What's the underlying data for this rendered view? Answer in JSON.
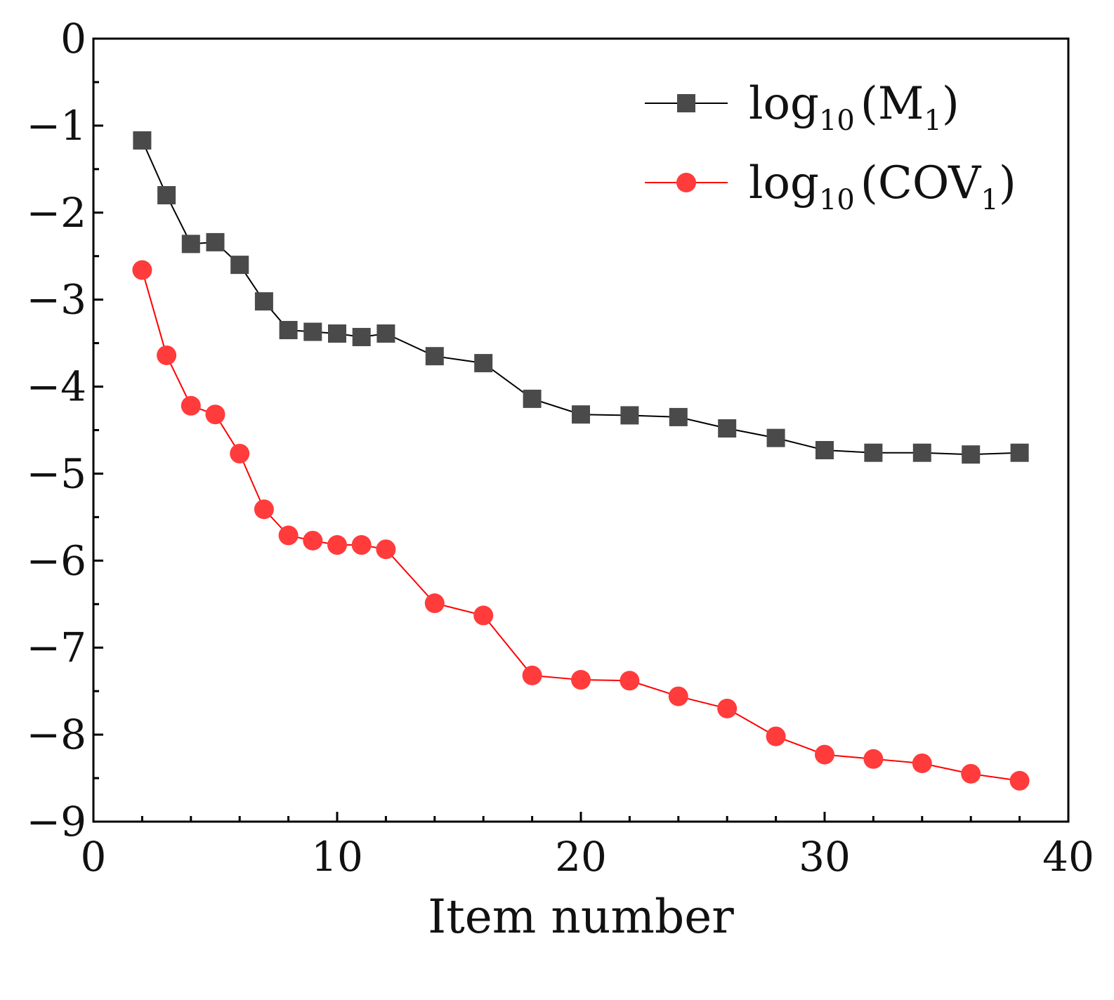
{
  "chart_data": {
    "type": "line",
    "title": "",
    "xlabel": "Item number",
    "ylabel": "",
    "xlim": [
      0,
      40
    ],
    "ylim": [
      -9,
      0
    ],
    "xticks": [
      0,
      10,
      20,
      30,
      40
    ],
    "yticks": [
      0,
      -1,
      -2,
      -3,
      -4,
      -5,
      -6,
      -7,
      -8,
      -9
    ],
    "ytick_labels": [
      "0",
      "−1",
      "−2",
      "−3",
      "−4",
      "−5",
      "−6",
      "−7",
      "−8",
      "−9"
    ],
    "grid": false,
    "legend_position": "top-right",
    "x": [
      2,
      3,
      4,
      5,
      6,
      7,
      8,
      9,
      10,
      11,
      12,
      14,
      16,
      18,
      20,
      22,
      24,
      26,
      28,
      30,
      32,
      34,
      36,
      38
    ],
    "series": [
      {
        "name": "log10(M1)",
        "label_main": "log",
        "label_sub": "10",
        "label_open": "(M",
        "label_index": "1",
        "label_close": ")",
        "color": "#4a4a4a",
        "line_color": "#000000",
        "marker": "square",
        "values": [
          -1.17,
          -1.8,
          -2.36,
          -2.34,
          -2.6,
          -3.02,
          -3.35,
          -3.37,
          -3.39,
          -3.43,
          -3.39,
          -3.65,
          -3.73,
          -4.14,
          -4.32,
          -4.33,
          -4.35,
          -4.48,
          -4.59,
          -4.73,
          -4.76,
          -4.76,
          -4.78,
          -4.76
        ]
      },
      {
        "name": "log10(COV1)",
        "label_main": "log",
        "label_sub": "10",
        "label_open": "(COV",
        "label_index": "1",
        "label_close": ")",
        "color": "#ff3b3b",
        "line_color": "#ff0000",
        "marker": "circle",
        "values": [
          -2.66,
          -3.64,
          -4.22,
          -4.32,
          -4.77,
          -5.41,
          -5.71,
          -5.77,
          -5.82,
          -5.82,
          -5.87,
          -6.49,
          -6.63,
          -7.32,
          -7.37,
          -7.38,
          -7.56,
          -7.7,
          -8.02,
          -8.23,
          -8.28,
          -8.33,
          -8.45,
          -8.53
        ]
      }
    ]
  }
}
